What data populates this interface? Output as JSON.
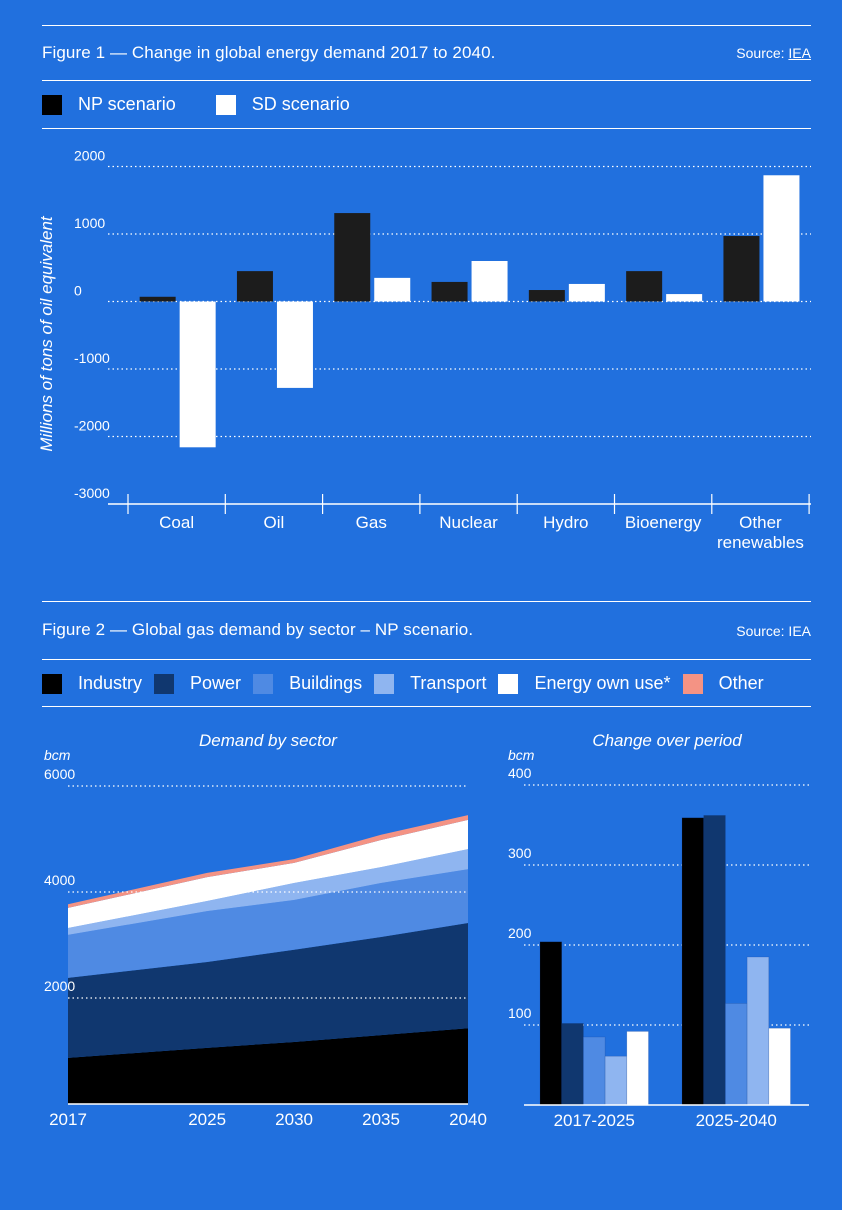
{
  "figure1": {
    "title": "Figure 1 — Change in global energy demand 2017 to 2040.",
    "source_prefix": "Source: ",
    "source_link": "IEA",
    "legend": [
      {
        "label": "NP scenario",
        "color": "#1c1c1c"
      },
      {
        "label": "SD scenario",
        "color": "#ffffff"
      }
    ]
  },
  "figure2": {
    "title": "Figure 2 — Global gas demand by sector – NP scenario.",
    "source": "Source: IEA",
    "legend": [
      {
        "label": "Industry",
        "color": "#000000"
      },
      {
        "label": "Power",
        "color": "#10376F"
      },
      {
        "label": "Buildings",
        "color": "#4F8AE3"
      },
      {
        "label": "Transport",
        "color": "#8FB5F0"
      },
      {
        "label": "Energy own use*",
        "color": "#ffffff"
      },
      {
        "label": "Other",
        "color": "#F49384"
      }
    ]
  },
  "colors": {
    "background": "#2170DE",
    "np": "#1c1c1c",
    "sd": "#ffffff",
    "industry": "#000000",
    "power": "#10376F",
    "buildings": "#4F8AE3",
    "transport": "#8FB5F0",
    "energy_own_use": "#ffffff",
    "other": "#F49384"
  },
  "chart_data": [
    {
      "type": "bar",
      "title": "Change in global energy demand 2017 to 2040",
      "xlabel": "",
      "ylabel": "Millions of tons of oil equivalent",
      "ylim": [
        -3000,
        2000
      ],
      "yticks": [
        2000,
        1000,
        0,
        -1000,
        -2000,
        -3000
      ],
      "grid": true,
      "categories": [
        "Coal",
        "Oil",
        "Gas",
        "Nuclear",
        "Hydro",
        "Bioenergy",
        "Other renewables"
      ],
      "series": [
        {
          "name": "NP scenario",
          "values": [
            70,
            450,
            1310,
            290,
            170,
            450,
            970
          ]
        },
        {
          "name": "SD scenario",
          "values": [
            -2160,
            -1280,
            350,
            600,
            260,
            110,
            1870
          ]
        }
      ]
    },
    {
      "type": "area",
      "title": "Demand by sector",
      "unit": "bcm",
      "ylim": [
        0,
        6000
      ],
      "yticks": [
        6000,
        4000,
        2000
      ],
      "grid": true,
      "x": [
        2017,
        2025,
        2030,
        2035,
        2040
      ],
      "xticks": [
        "2017",
        "2025",
        "2030",
        "2035",
        "2040"
      ],
      "stacked": true,
      "series": [
        {
          "name": "Industry",
          "values": [
            870,
            1060,
            1170,
            1300,
            1430
          ]
        },
        {
          "name": "Power",
          "values": [
            1510,
            1620,
            1740,
            1850,
            1985
          ]
        },
        {
          "name": "Buildings",
          "values": [
            810,
            960,
            940,
            1020,
            1015
          ]
        },
        {
          "name": "Transport",
          "values": [
            130,
            190,
            320,
            300,
            380
          ]
        },
        {
          "name": "Energy own use*",
          "values": [
            380,
            450,
            380,
            510,
            550
          ]
        },
        {
          "name": "Other",
          "values": [
            70,
            80,
            70,
            100,
            90
          ]
        }
      ]
    },
    {
      "type": "bar",
      "title": "Change over period",
      "unit": "bcm",
      "ylim": [
        0,
        400
      ],
      "yticks": [
        400,
        300,
        200,
        100
      ],
      "grid": true,
      "categories": [
        "2017-2025",
        "2025-2040"
      ],
      "series": [
        {
          "name": "Industry",
          "values": [
            204,
            359
          ]
        },
        {
          "name": "Power",
          "values": [
            102,
            362
          ]
        },
        {
          "name": "Buildings",
          "values": [
            85,
            127
          ]
        },
        {
          "name": "Transport",
          "values": [
            61,
            185
          ]
        },
        {
          "name": "Energy own use*",
          "values": [
            92,
            96
          ]
        }
      ]
    }
  ]
}
